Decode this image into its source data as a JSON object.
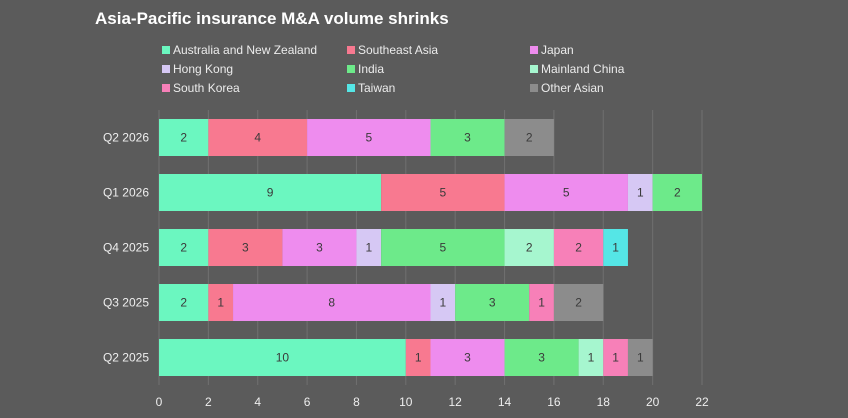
{
  "title": "Asia-Pacific insurance M&A volume shrinks",
  "chart_data": {
    "type": "bar",
    "orientation": "horizontal",
    "stacked": true,
    "title": "Asia-Pacific insurance M&A volume shrinks",
    "categories": [
      "Q2 2026",
      "Q1 2026",
      "Q4 2025",
      "Q3 2025",
      "Q2 2025"
    ],
    "xlim": [
      0,
      22
    ],
    "xticks": [
      0,
      2,
      4,
      6,
      8,
      10,
      12,
      14,
      16,
      18,
      20,
      22
    ],
    "grid": "vertical",
    "legend_position": "top",
    "series": [
      {
        "name": "Australia and New Zealand",
        "color": "#6bf7c0",
        "values": [
          2,
          9,
          2,
          2,
          10
        ]
      },
      {
        "name": "Southeast Asia",
        "color": "#f87990",
        "values": [
          4,
          5,
          3,
          1,
          1
        ]
      },
      {
        "name": "Japan",
        "color": "#ee8cee",
        "values": [
          5,
          5,
          3,
          8,
          3
        ]
      },
      {
        "name": "Hong Kong",
        "color": "#d6c8f4",
        "values": [
          0,
          1,
          1,
          1,
          0
        ]
      },
      {
        "name": "India",
        "color": "#6dea8a",
        "values": [
          3,
          2,
          5,
          3,
          3
        ]
      },
      {
        "name": "Mainland China",
        "color": "#a6f6cf",
        "values": [
          0,
          0,
          2,
          0,
          1
        ]
      },
      {
        "name": "South Korea",
        "color": "#f780b8",
        "values": [
          0,
          0,
          2,
          1,
          1
        ]
      },
      {
        "name": "Taiwan",
        "color": "#55e6e6",
        "values": [
          0,
          0,
          1,
          0,
          0
        ]
      },
      {
        "name": "Other Asian",
        "color": "#8c8c8c",
        "values": [
          2,
          0,
          0,
          2,
          1
        ]
      }
    ]
  }
}
